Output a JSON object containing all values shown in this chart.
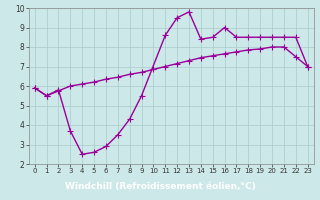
{
  "xlabel": "Windchill (Refroidissement éolien,°C)",
  "bg_color": "#cde8e8",
  "plot_bg_color": "#cde8e8",
  "label_bg_color": "#660066",
  "line_color": "#990099",
  "grid_color": "#aacccc",
  "xlim_min": -0.5,
  "xlim_max": 23.5,
  "ylim_min": 2,
  "ylim_max": 10,
  "xticks": [
    0,
    1,
    2,
    3,
    4,
    5,
    6,
    7,
    8,
    9,
    10,
    11,
    12,
    13,
    14,
    15,
    16,
    17,
    18,
    19,
    20,
    21,
    22,
    23
  ],
  "yticks": [
    2,
    3,
    4,
    5,
    6,
    7,
    8,
    9,
    10
  ],
  "line1_x": [
    0,
    1,
    2,
    3,
    4,
    5,
    6,
    7,
    8,
    9,
    11,
    12,
    13,
    14,
    15,
    16,
    17,
    18,
    19,
    20,
    21,
    22,
    23
  ],
  "line1_y": [
    5.9,
    5.5,
    5.8,
    3.7,
    2.5,
    2.6,
    2.9,
    3.5,
    4.3,
    5.5,
    8.6,
    9.5,
    9.8,
    8.4,
    8.5,
    9.0,
    8.5,
    8.5,
    8.5,
    8.5,
    8.5,
    8.5,
    7.0
  ],
  "line2_x": [
    0,
    1,
    2,
    3,
    4,
    5,
    6,
    7,
    8,
    9,
    10,
    11,
    12,
    13,
    14,
    15,
    16,
    17,
    18,
    19,
    20,
    21,
    22,
    23
  ],
  "line2_y": [
    5.9,
    5.5,
    5.75,
    6.0,
    6.1,
    6.2,
    6.35,
    6.45,
    6.6,
    6.7,
    6.85,
    7.0,
    7.15,
    7.3,
    7.45,
    7.55,
    7.65,
    7.75,
    7.85,
    7.9,
    8.0,
    8.0,
    7.5,
    7.0
  ],
  "marker": "+",
  "markersize": 4,
  "linewidth": 1.0,
  "tick_fontsize": 5.5,
  "xlabel_fontsize": 6.5,
  "xlabel_color": "#ffffff",
  "xlabel_bg": "#7700aa"
}
